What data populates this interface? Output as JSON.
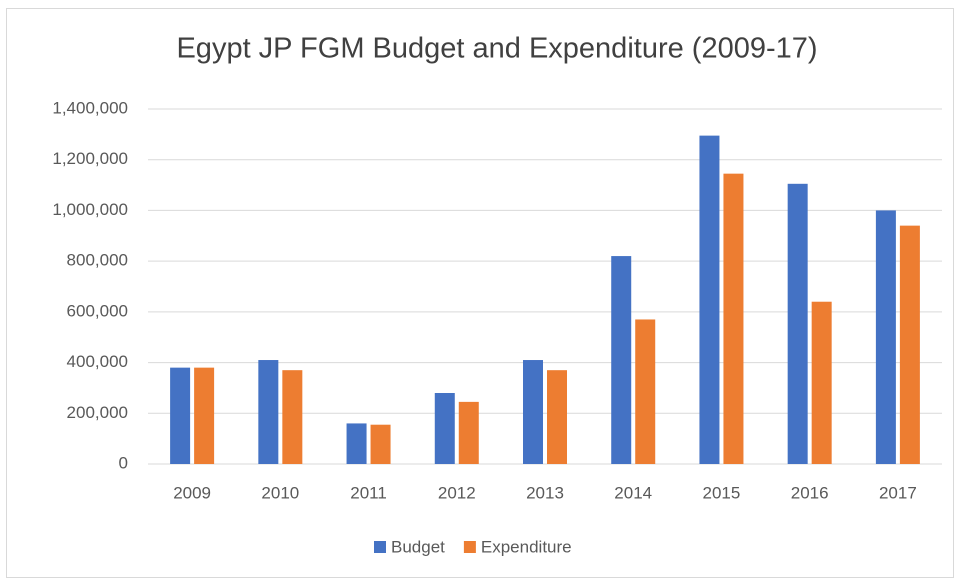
{
  "chart_data": {
    "type": "bar",
    "title": "Egypt JP FGM Budget and Expenditure (2009-17)",
    "categories": [
      "2009",
      "2010",
      "2011",
      "2012",
      "2013",
      "2014",
      "2015",
      "2016",
      "2017"
    ],
    "series": [
      {
        "name": "Budget",
        "color": "#4472c4",
        "values": [
          380000,
          410000,
          160000,
          280000,
          410000,
          820000,
          1295000,
          1105000,
          1000000
        ]
      },
      {
        "name": "Expenditure",
        "color": "#ed7d31",
        "values": [
          380000,
          370000,
          155000,
          245000,
          370000,
          570000,
          1145000,
          640000,
          940000
        ]
      }
    ],
    "ylim": [
      0,
      1400000
    ],
    "yticks": [
      0,
      {
        "value": 200000,
        "label": "200,000"
      },
      {
        "value": 400000,
        "label": "400,000"
      },
      {
        "value": 600000,
        "label": "600,000"
      },
      {
        "value": 800000,
        "label": "800,000"
      },
      {
        "value": 1000000,
        "label": "1,000,000"
      },
      {
        "value": 1200000,
        "label": "1,200,000"
      },
      {
        "value": 1400000,
        "label": "1,400,000"
      }
    ],
    "grid": true,
    "legend": "bottom"
  }
}
